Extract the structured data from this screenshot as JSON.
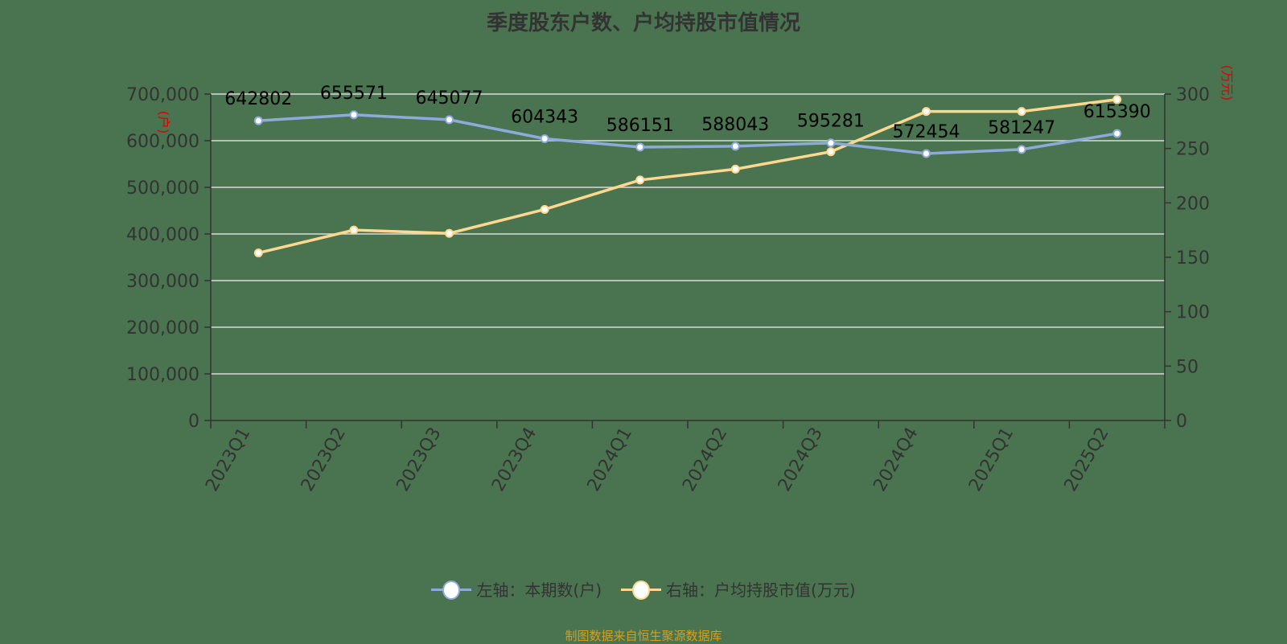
{
  "title": "季度股东户数、户均持股市值情况",
  "left_axis_unit": "(户)",
  "right_axis_unit": "(万元)",
  "legend": [
    {
      "label": "左轴：本期数(户)",
      "color": "#8eaadb"
    },
    {
      "label": "右轴：户均持股市值(万元)",
      "color": "#ffd88f"
    }
  ],
  "source": "制图数据来自恒生聚源数据库",
  "colors": {
    "background": "#4a7350",
    "left_series": "#8eaadb",
    "right_series": "#ffd88f",
    "grid": "#d9d9d9",
    "axis_text": "#333333",
    "unit_text": "#e00000"
  },
  "chart_data": {
    "type": "line",
    "title": "季度股东户数、户均持股市值情况",
    "categories": [
      "2023Q1",
      "2023Q2",
      "2023Q3",
      "2023Q4",
      "2024Q1",
      "2024Q2",
      "2024Q3",
      "2024Q4",
      "2025Q1",
      "2025Q2"
    ],
    "series": [
      {
        "name": "左轴：本期数(户)",
        "axis": "left",
        "values": [
          642802,
          655571,
          645077,
          604343,
          586151,
          588043,
          595281,
          572454,
          581247,
          615390
        ],
        "labels_shown": true
      },
      {
        "name": "右轴：户均持股市值(万元)",
        "axis": "right",
        "values": [
          154,
          175,
          172,
          194,
          221,
          231,
          247,
          284,
          284,
          295
        ],
        "labels_shown": false
      }
    ],
    "left_axis": {
      "label": "(户)",
      "ylim": [
        0,
        700000
      ],
      "ticks": [
        "0",
        "100,000",
        "200,000",
        "300,000",
        "400,000",
        "500,000",
        "600,000",
        "700,000"
      ]
    },
    "right_axis": {
      "label": "(万元)",
      "ylim": [
        0,
        300
      ],
      "ticks": [
        "0",
        "50",
        "100",
        "150",
        "200",
        "250",
        "300"
      ]
    },
    "grid": true,
    "legend_position": "bottom"
  }
}
